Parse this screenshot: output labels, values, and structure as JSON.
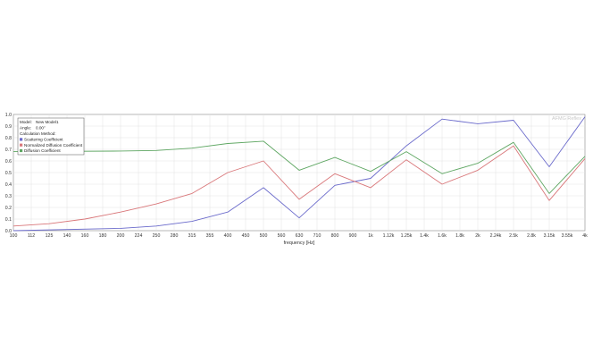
{
  "chart_data": {
    "type": "line",
    "title": "",
    "xlabel": "frequency [Hz]",
    "ylabel": "",
    "ylim": [
      0,
      1.0
    ],
    "yticks": [
      "0.0",
      "0.1",
      "0.2",
      "0.3",
      "0.4",
      "0.5",
      "0.6",
      "0.7",
      "0.8",
      "0.9",
      "1.0"
    ],
    "x": [
      "100",
      "112",
      "125",
      "140",
      "160",
      "180",
      "200",
      "224",
      "250",
      "280",
      "315",
      "355",
      "400",
      "450",
      "500",
      "560",
      "630",
      "710",
      "800",
      "900",
      "1k",
      "1.12k",
      "1.25k",
      "1.4k",
      "1.6k",
      "1.8k",
      "2k",
      "2.24k",
      "2.5k",
      "2.8k",
      "3.15k",
      "3.55k",
      "4k"
    ],
    "grid": true,
    "legend": "top-left",
    "watermark": "AFMG Reflex",
    "info": {
      "model_label": "Model:",
      "model_value": "New Model1",
      "angle_label": "Angle:",
      "angle_value": "0.00°",
      "method_label": "Calculation Method:"
    },
    "series": [
      {
        "name": "Scattering Coefficient",
        "color": "#6a6acb",
        "points": [
          {
            "x": "100",
            "y": 0.0
          },
          {
            "x": "200",
            "y": 0.02
          },
          {
            "x": "250",
            "y": 0.04
          },
          {
            "x": "315",
            "y": 0.08
          },
          {
            "x": "400",
            "y": 0.16
          },
          {
            "x": "500",
            "y": 0.37
          },
          {
            "x": "630",
            "y": 0.11
          },
          {
            "x": "800",
            "y": 0.39
          },
          {
            "x": "1k",
            "y": 0.45
          },
          {
            "x": "1.25k",
            "y": 0.73
          },
          {
            "x": "1.6k",
            "y": 0.96
          },
          {
            "x": "2k",
            "y": 0.92
          },
          {
            "x": "2.5k",
            "y": 0.95
          },
          {
            "x": "3.15k",
            "y": 0.55
          },
          {
            "x": "4k",
            "y": 0.98
          }
        ]
      },
      {
        "name": "Normalized Diffusion Coefficient",
        "color": "#d9777a",
        "points": [
          {
            "x": "100",
            "y": 0.04
          },
          {
            "x": "125",
            "y": 0.06
          },
          {
            "x": "160",
            "y": 0.1
          },
          {
            "x": "200",
            "y": 0.16
          },
          {
            "x": "250",
            "y": 0.23
          },
          {
            "x": "315",
            "y": 0.32
          },
          {
            "x": "400",
            "y": 0.5
          },
          {
            "x": "500",
            "y": 0.6
          },
          {
            "x": "630",
            "y": 0.27
          },
          {
            "x": "800",
            "y": 0.49
          },
          {
            "x": "1k",
            "y": 0.37
          },
          {
            "x": "1.25k",
            "y": 0.61
          },
          {
            "x": "1.6k",
            "y": 0.4
          },
          {
            "x": "2k",
            "y": 0.52
          },
          {
            "x": "2.5k",
            "y": 0.73
          },
          {
            "x": "3.15k",
            "y": 0.26
          },
          {
            "x": "4k",
            "y": 0.62
          }
        ]
      },
      {
        "name": "Diffusion Coefficient",
        "color": "#5fa763",
        "points": [
          {
            "x": "100",
            "y": 0.68
          },
          {
            "x": "200",
            "y": 0.685
          },
          {
            "x": "250",
            "y": 0.69
          },
          {
            "x": "315",
            "y": 0.71
          },
          {
            "x": "400",
            "y": 0.75
          },
          {
            "x": "500",
            "y": 0.77
          },
          {
            "x": "630",
            "y": 0.52
          },
          {
            "x": "800",
            "y": 0.63
          },
          {
            "x": "1k",
            "y": 0.51
          },
          {
            "x": "1.25k",
            "y": 0.68
          },
          {
            "x": "1.6k",
            "y": 0.49
          },
          {
            "x": "2k",
            "y": 0.58
          },
          {
            "x": "2.5k",
            "y": 0.76
          },
          {
            "x": "3.15k",
            "y": 0.32
          },
          {
            "x": "4k",
            "y": 0.64
          }
        ]
      }
    ]
  }
}
